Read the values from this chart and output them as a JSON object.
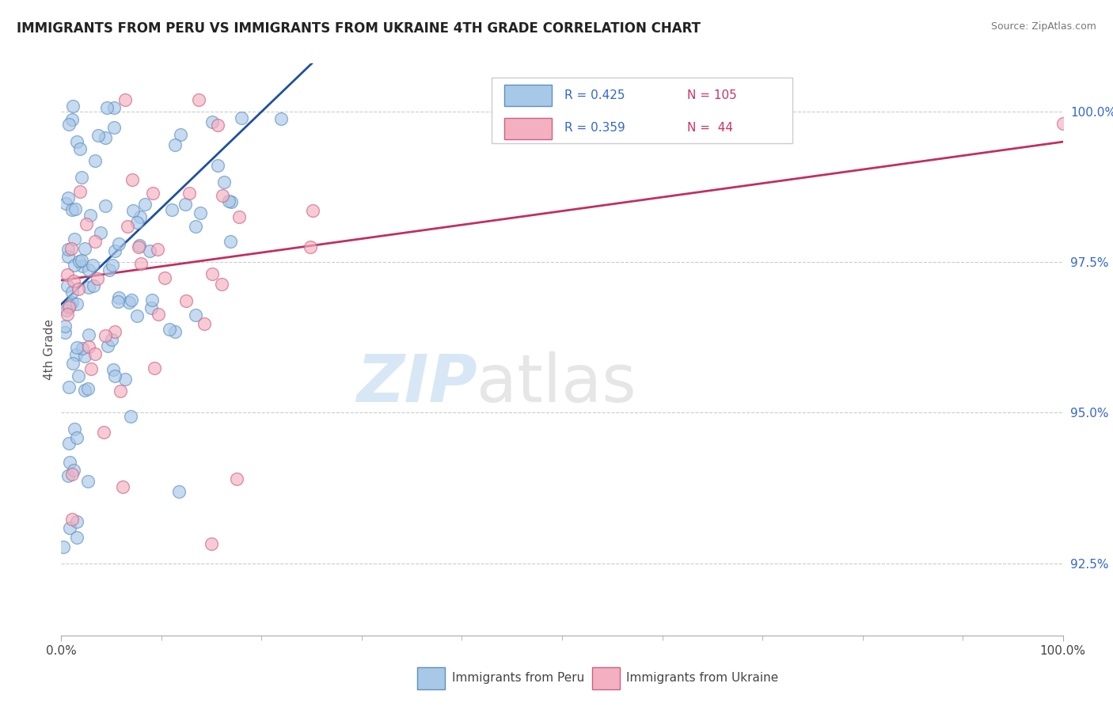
{
  "title": "IMMIGRANTS FROM PERU VS IMMIGRANTS FROM UKRAINE 4TH GRADE CORRELATION CHART",
  "source": "Source: ZipAtlas.com",
  "ylabel": "4th Grade",
  "xlim": [
    0.0,
    100.0
  ],
  "ylim": [
    91.3,
    100.8
  ],
  "yticks": [
    92.5,
    95.0,
    97.5,
    100.0
  ],
  "ytick_labels": [
    "92.5%",
    "95.0%",
    "97.5%",
    "100.0%"
  ],
  "peru_color": "#a8c8e8",
  "ukraine_color": "#f4b0c0",
  "peru_edge_color": "#6090c0",
  "ukraine_edge_color": "#d06080",
  "line_peru_color": "#2050a0",
  "line_ukraine_color": "#c03060",
  "R_peru": 0.425,
  "N_peru": 105,
  "R_ukraine": 0.359,
  "N_ukraine": 44,
  "legend_label_peru": "Immigrants from Peru",
  "legend_label_ukraine": "Immigrants from Ukraine",
  "watermark_zip": "ZIP",
  "watermark_atlas": "atlas"
}
